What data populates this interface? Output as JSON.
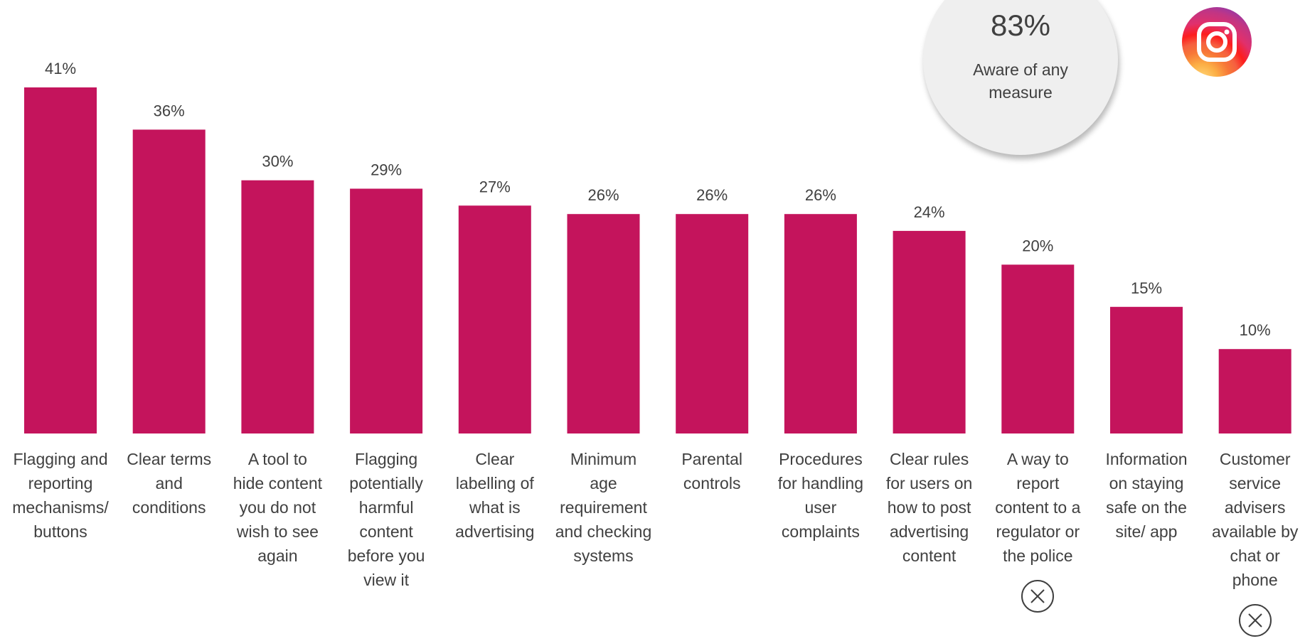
{
  "chart_data": {
    "type": "bar",
    "categories": [
      "Flagging and reporting mechanisms/ buttons",
      "Clear terms and conditions",
      "A tool to hide content you do not wish to see again",
      "Flagging potentially harmful content before you view it",
      "Clear labelling of what is advertising",
      "Minimum age requirement and checking systems",
      "Parental controls",
      "Procedures for handling user complaints",
      "Clear rules for users on how to post advertising content",
      "A way to report content to a regulator or the police",
      "Information on staying safe on the site/ app",
      "Customer service advisers available by chat or phone"
    ],
    "category_lines": [
      [
        "Flagging and",
        "reporting",
        "mechanisms/",
        "buttons"
      ],
      [
        "Clear terms",
        "and",
        "conditions"
      ],
      [
        "A tool to",
        "hide content",
        "you do not",
        "wish to see",
        "again"
      ],
      [
        "Flagging",
        "potentially",
        "harmful",
        "content",
        "before you",
        "view it"
      ],
      [
        "Clear",
        "labelling of",
        "what is",
        "advertising"
      ],
      [
        "Minimum",
        "age",
        "requirement",
        "and checking",
        "systems"
      ],
      [
        "Parental",
        "controls"
      ],
      [
        "Procedures",
        "for handling",
        "user",
        "complaints"
      ],
      [
        "Clear rules",
        "for users on",
        "how to post",
        "advertising",
        "content"
      ],
      [
        "A way to",
        "report",
        "content to a",
        "regulator or",
        "the police"
      ],
      [
        "Information",
        "on staying",
        "safe on the",
        "site/ app"
      ],
      [
        "Customer",
        "service",
        "advisers",
        "available by",
        "chat or",
        "phone"
      ]
    ],
    "values": [
      41,
      36,
      30,
      29,
      27,
      26,
      26,
      26,
      24,
      20,
      15,
      10
    ],
    "value_labels": [
      "41%",
      "36%",
      "30%",
      "29%",
      "27%",
      "26%",
      "26%",
      "26%",
      "24%",
      "20%",
      "15%",
      "10%"
    ],
    "unit": "%",
    "ylim": [
      0,
      41
    ],
    "grid": false,
    "bar_color": "#c4145c",
    "title": "",
    "xlabel": "",
    "ylabel": ""
  },
  "callout": {
    "value": "83%",
    "label": "Aware of any measure"
  },
  "logo": {
    "icon": "instagram-logo-icon"
  },
  "markers": {
    "icon": "circle-x-icon",
    "category_indices": [
      9,
      11
    ]
  }
}
